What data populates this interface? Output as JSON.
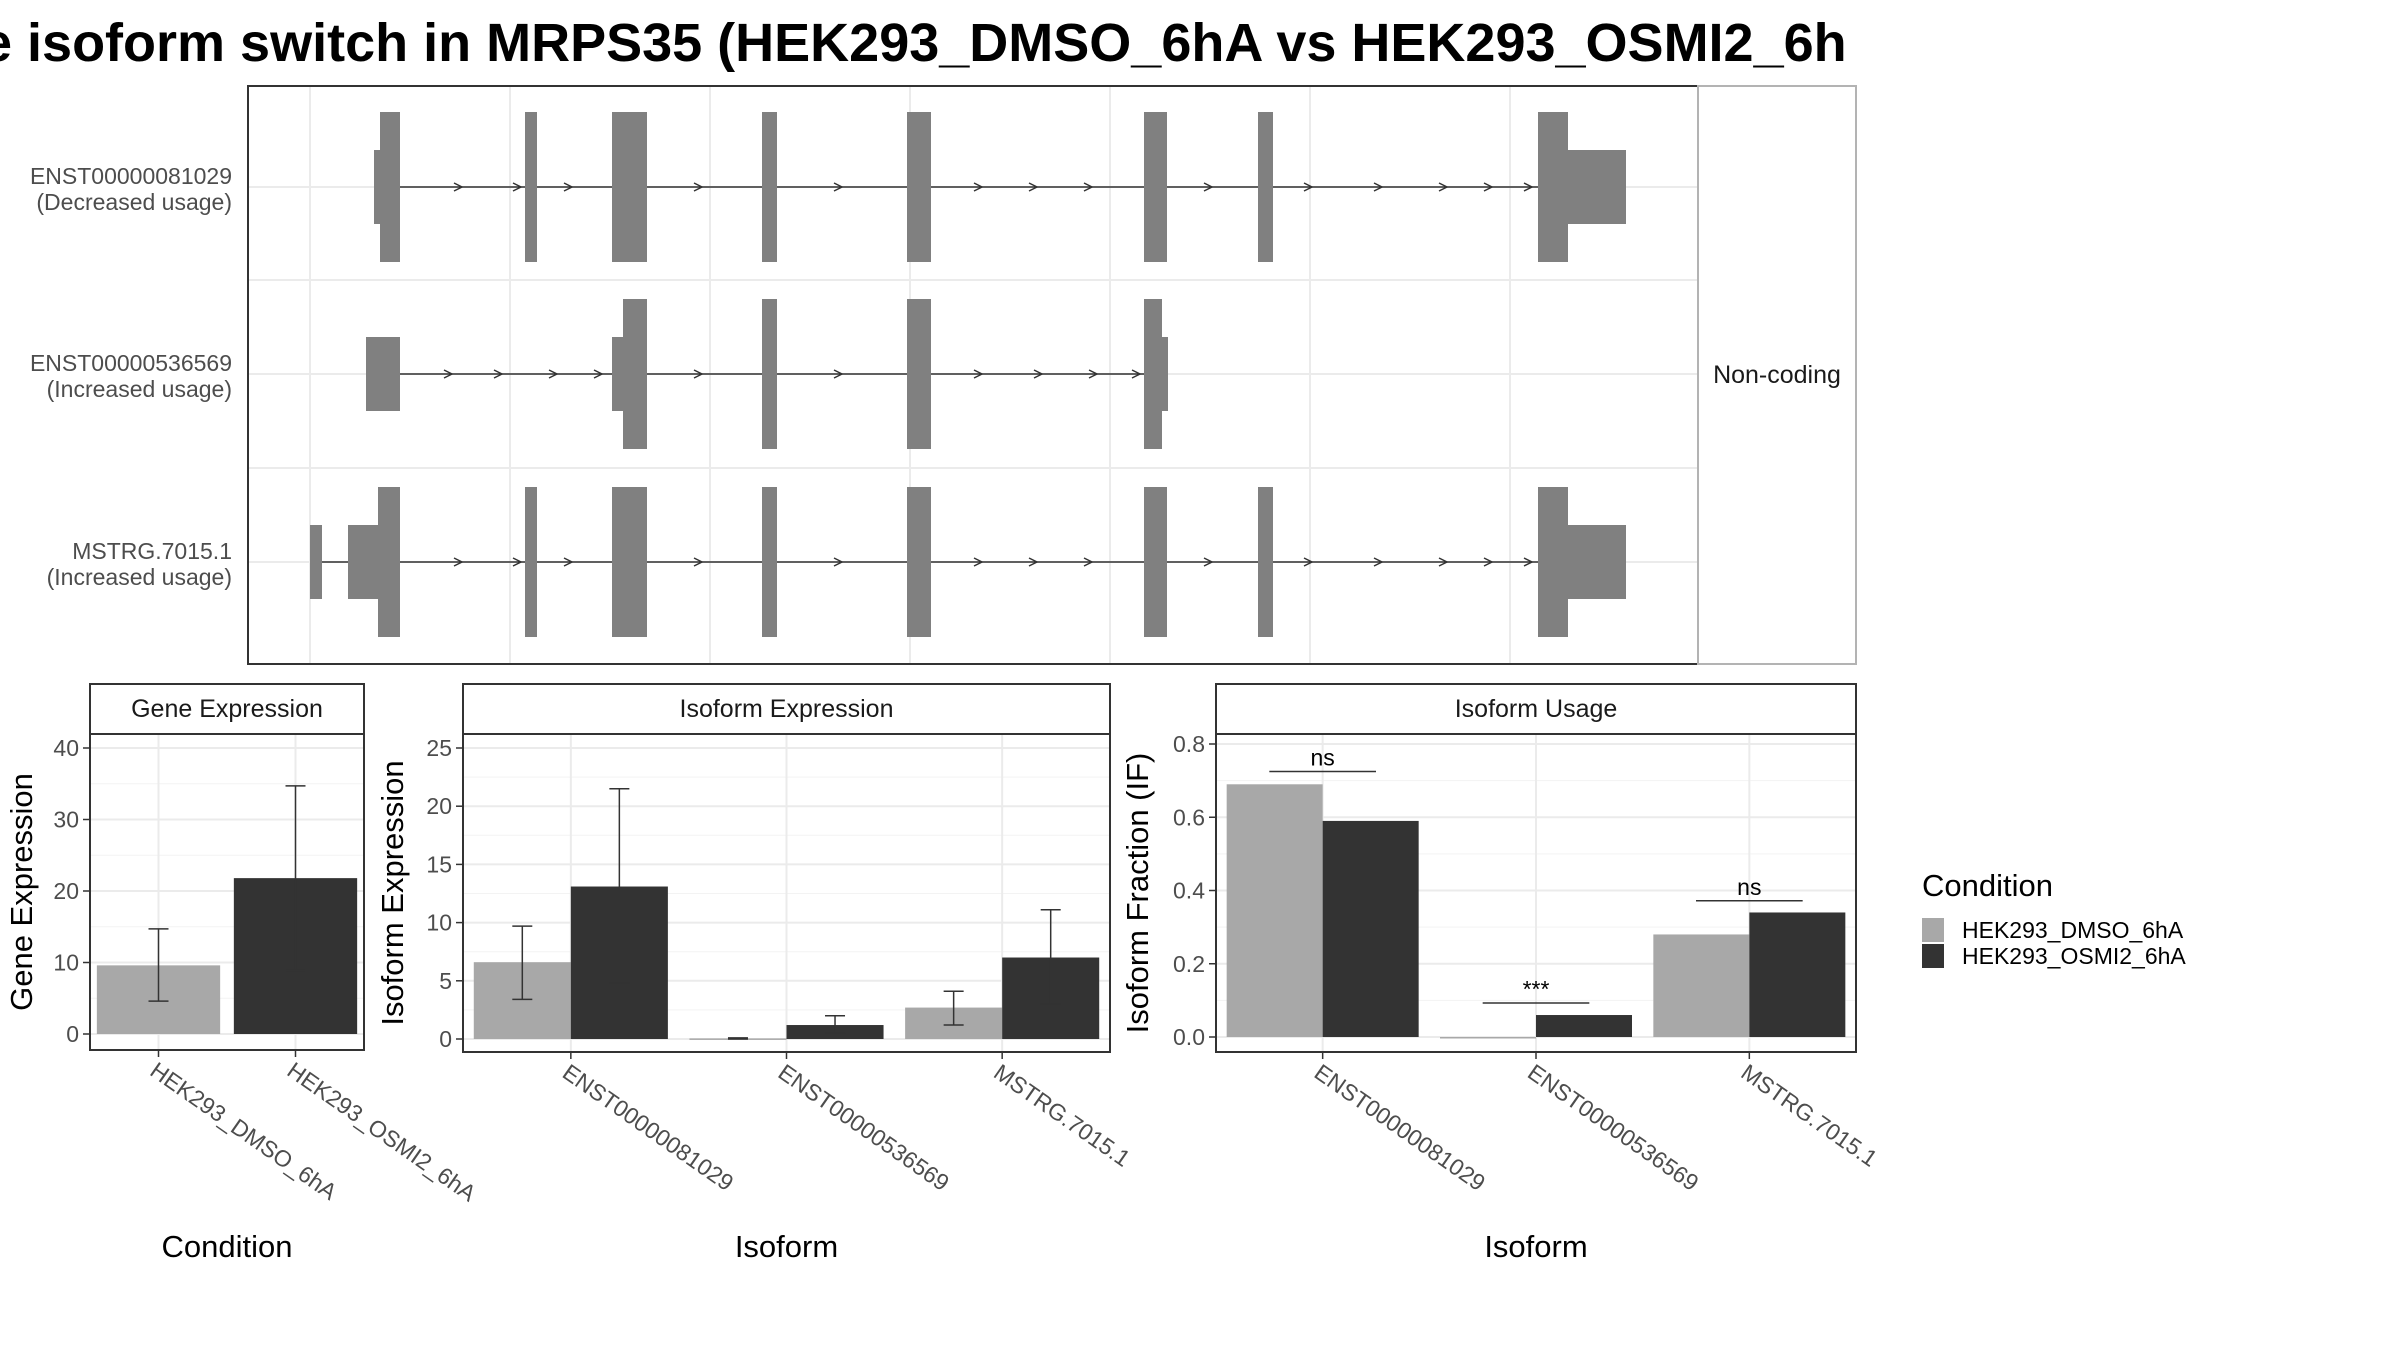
{
  "title": "e isoform switch in MRPS35 (HEK293_DMSO_6hA vs HEK293_OSMI2_6h",
  "colors": {
    "DMSO": "#a8a8a8",
    "OSMI2": "#333333",
    "exon": "#808080",
    "grid": "#ebebeb",
    "panel_border": "#333333"
  },
  "chart_data": [
    {
      "type": "gene_structure",
      "side_strip": "Non-coding",
      "transcripts": [
        {
          "id": "ENST00000081029",
          "usage": "(Decreased usage)",
          "exons": [
            [
              20,
              31
            ],
            [
              37,
              45
            ],
            [
              145,
              151
            ],
            [
              186,
              192
            ],
            [
              258,
              264
            ],
            [
              348,
              357
            ],
            [
              495,
              502
            ],
            [
              646,
              653
            ],
            [
              730,
              750
            ],
            [
              899,
              911
            ]
          ],
          "utr_exons": [
            [
              20,
              31
            ],
            [
              899,
              911
            ]
          ],
          "cds_exons": [
            [
              31,
              38
            ],
            [
              145,
              151
            ],
            [
              186,
              192
            ],
            [
              258,
              264
            ],
            [
              348,
              357
            ],
            [
              495,
              502
            ],
            [
              646,
              653
            ],
            [
              730,
              750
            ],
            [
              899,
              911
            ],
            [
              911,
              969
            ]
          ],
          "coding": [
            [
              31,
              38
            ],
            [
              145,
              151
            ],
            [
              186,
              192
            ],
            [
              258,
              264
            ],
            [
              348,
              357
            ],
            [
              495,
              502
            ],
            [
              646,
              653
            ],
            [
              730,
              750
            ],
            [
              899,
              911
            ]
          ]
        },
        {
          "id": "ENST00000536569",
          "usage": "(Increased usage)",
          "exons": [
            [
              22,
              31
            ],
            [
              208,
              213
            ],
            [
              231,
              246
            ],
            [
              348,
              354
            ],
            [
              426,
              434
            ],
            [
              495,
              504
            ]
          ],
          "coding": [
            [
              35,
              50
            ],
            [
              231,
              246
            ],
            [
              348,
              354
            ],
            [
              426,
              434
            ],
            [
              495,
              504
            ]
          ]
        },
        {
          "id": "MSTRG.7015.1",
          "usage": "(Increased usage)",
          "exons": [
            [
              0,
              5
            ],
            [
              16,
              27
            ],
            [
              145,
              151
            ],
            [
              186,
              192
            ],
            [
              258,
              264
            ],
            [
              348,
              357
            ],
            [
              495,
              502
            ],
            [
              646,
              653
            ],
            [
              730,
              750
            ],
            [
              899,
              911
            ],
            [
              911,
              969
            ]
          ],
          "coding": [
            [
              27,
              38
            ],
            [
              145,
              151
            ],
            [
              186,
              192
            ],
            [
              258,
              264
            ],
            [
              348,
              357
            ],
            [
              495,
              502
            ],
            [
              646,
              653
            ],
            [
              730,
              750
            ],
            [
              899,
              911
            ]
          ]
        }
      ]
    },
    {
      "type": "bar",
      "panel": "Gene Expression",
      "xlabel": "Condition",
      "ylabel": "Gene Expression",
      "ylim": [
        0,
        40
      ],
      "yticks": [
        0,
        10,
        20,
        30,
        40
      ],
      "categories": [
        "HEK293_DMSO_6hA",
        "HEK293_OSMI2_6hA"
      ],
      "series": [
        {
          "name": "HEK293_DMSO_6hA",
          "values": [
            9.6,
            null
          ],
          "err_low": [
            4.6,
            null
          ],
          "err_high": [
            14.7,
            null
          ]
        },
        {
          "name": "HEK293_OSMI2_6hA",
          "values": [
            null,
            21.8
          ],
          "err_low": [
            null,
            8.9
          ],
          "err_high": [
            null,
            34.7
          ]
        }
      ]
    },
    {
      "type": "bar",
      "panel": "Isoform Expression",
      "xlabel": "Isoform",
      "ylabel": "Isoform Expression",
      "ylim": [
        0,
        25
      ],
      "yticks": [
        0,
        5,
        10,
        15,
        20,
        25
      ],
      "categories": [
        "ENST00000081029",
        "ENST00000536569",
        "MSTRG.7015.1"
      ],
      "series": [
        {
          "name": "HEK293_DMSO_6hA",
          "values": [
            6.6,
            0.05,
            2.7
          ],
          "err_low": [
            3.4,
            0.0,
            1.2
          ],
          "err_high": [
            9.7,
            0.1,
            4.1
          ]
        },
        {
          "name": "HEK293_OSMI2_6hA",
          "values": [
            13.1,
            1.2,
            7.0
          ],
          "err_low": [
            4.8,
            0.5,
            3.0
          ],
          "err_high": [
            21.5,
            2.0,
            11.1
          ]
        }
      ]
    },
    {
      "type": "bar",
      "panel": "Isoform Usage",
      "xlabel": "Isoform",
      "ylabel": "Isoform Fraction (IF)",
      "ylim": [
        0,
        0.8
      ],
      "yticks": [
        0.0,
        0.2,
        0.4,
        0.6,
        0.8
      ],
      "ytick_labels": [
        "0.0",
        "0.2",
        "0.4",
        "0.6",
        "0.8"
      ],
      "categories": [
        "ENST00000081029",
        "ENST00000536569",
        "MSTRG.7015.1"
      ],
      "series": [
        {
          "name": "HEK293_DMSO_6hA",
          "values": [
            0.69,
            0.0,
            0.28
          ]
        },
        {
          "name": "HEK293_OSMI2_6hA",
          "values": [
            0.59,
            0.06,
            0.34
          ]
        }
      ],
      "significance": [
        {
          "label": "ns",
          "y": 0.725
        },
        {
          "label": "***",
          "y": 0.093
        },
        {
          "label": "ns",
          "y": 0.372
        }
      ]
    }
  ],
  "legend": {
    "title": "Condition",
    "items": [
      "HEK293_DMSO_6hA",
      "HEK293_OSMI2_6hA"
    ]
  }
}
